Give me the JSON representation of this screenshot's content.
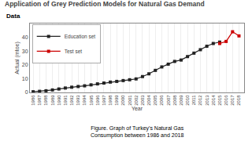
{
  "chart_data": {
    "type": "line",
    "title": "Application of Grey Prediction Models for Natural Gas Demand",
    "subtitle": "Data",
    "annotations": [
      "Figure. Graph of Turkey's Natural Gas\nConsumption between 1986 and 2018"
    ],
    "xlabel": "Year",
    "ylabel": "Actual (mtoe)",
    "x": [
      1986,
      1987,
      1988,
      1989,
      1990,
      1991,
      1992,
      1993,
      1994,
      1995,
      1996,
      1997,
      1998,
      1999,
      2000,
      2001,
      2002,
      2003,
      2004,
      2005,
      2006,
      2007,
      2008,
      2009,
      2010,
      2011,
      2012,
      2013,
      2014,
      2015,
      2016,
      2017,
      2018
    ],
    "series": [
      {
        "name": "Education set",
        "color": "#222222",
        "marker": "square",
        "values": [
          0.5,
          0.8,
          1.2,
          1.8,
          2.5,
          3.2,
          3.8,
          4.3,
          4.8,
          5.5,
          6.2,
          6.8,
          7.5,
          8.0,
          8.6,
          9.2,
          9.8,
          11.5,
          13.5,
          16.0,
          18.5,
          20.5,
          22.5,
          23.5,
          26.0,
          28.5,
          31.0,
          33.5,
          35.5,
          36.5,
          null,
          null,
          null
        ]
      },
      {
        "name": "Test set",
        "color": "#cc0000",
        "marker": "square",
        "values": [
          null,
          null,
          null,
          null,
          null,
          null,
          null,
          null,
          null,
          null,
          null,
          null,
          null,
          null,
          null,
          null,
          null,
          null,
          null,
          null,
          null,
          null,
          null,
          null,
          null,
          null,
          null,
          null,
          null,
          35.5,
          37.0,
          44.0,
          41.0
        ]
      }
    ],
    "xlim": [
      1985.5,
      2018.8
    ],
    "xticks": [
      1986,
      1987,
      1988,
      1989,
      1990,
      1991,
      1992,
      1993,
      1994,
      1995,
      1996,
      1997,
      1998,
      1999,
      2000,
      2001,
      2002,
      2003,
      2004,
      2005,
      2006,
      2007,
      2008,
      2009,
      2010,
      2011,
      2012,
      2013,
      2014,
      2015,
      2016,
      2017,
      2018
    ],
    "ylim": [
      0,
      50
    ],
    "yticks": [
      0,
      10,
      20,
      30,
      40
    ],
    "grid": "x",
    "legend": "upper left"
  }
}
